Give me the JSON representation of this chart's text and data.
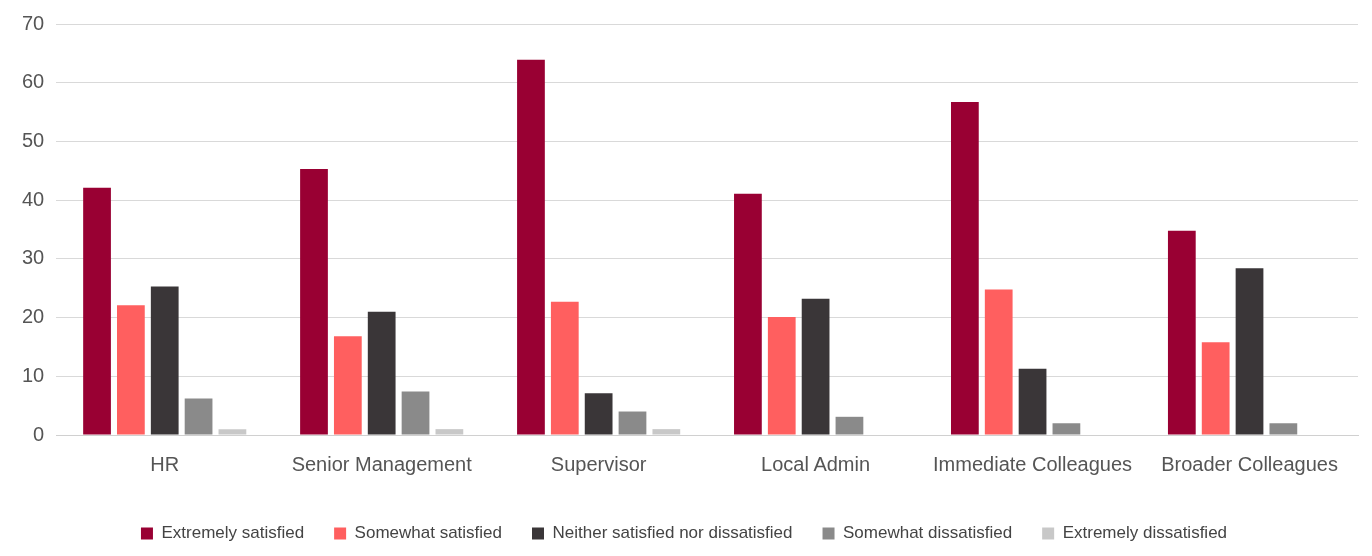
{
  "chart_data": {
    "type": "bar",
    "categories": [
      "HR",
      "Senior Management",
      "Supervisor",
      "Local Admin",
      "Immediate Colleagues",
      "Broader Colleagues"
    ],
    "series": [
      {
        "name": "Extremely satisfied",
        "color": "#990033",
        "values": [
          42.1,
          45.3,
          63.9,
          41.1,
          56.7,
          34.8
        ]
      },
      {
        "name": "Somewhat satisfied",
        "color": "#ff5f5f",
        "values": [
          22.1,
          16.8,
          22.7,
          20.1,
          24.8,
          15.8
        ]
      },
      {
        "name": "Neither satisfied nor dissatisfied",
        "color": "#3a3638",
        "values": [
          25.3,
          21.0,
          7.1,
          23.2,
          11.3,
          28.4
        ]
      },
      {
        "name": "Somewhat dissatisfied",
        "color": "#8a8a8a",
        "values": [
          6.2,
          7.4,
          4.0,
          3.1,
          2.0,
          2.0
        ]
      },
      {
        "name": "Extremely dissatisfied",
        "color": "#c8c8c8",
        "values": [
          1.0,
          1.0,
          1.0,
          0,
          0,
          0
        ]
      }
    ],
    "ylim": [
      0,
      70
    ],
    "yticks": [
      0,
      10,
      20,
      30,
      40,
      50,
      60,
      70
    ],
    "grid": "y",
    "legend": "bottom"
  }
}
